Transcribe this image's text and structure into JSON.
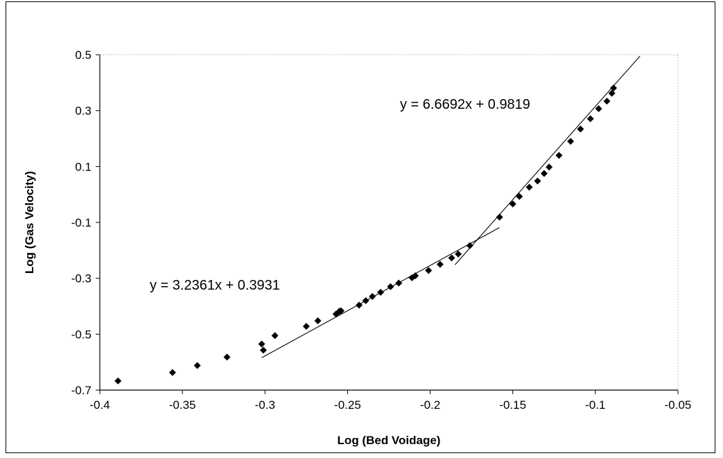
{
  "chart_data": {
    "type": "scatter",
    "title": "",
    "xlabel": "Log (Bed Voidage)",
    "ylabel": "Log (Gas Velocity)",
    "xlim": [
      -0.4,
      -0.05
    ],
    "ylim": [
      -0.7,
      0.5
    ],
    "x_ticks": [
      "-0.4",
      "-0.35",
      "-0.3",
      "-0.25",
      "-0.2",
      "-0.15",
      "-0.1",
      "-0.05"
    ],
    "y_ticks": [
      "0.5",
      "0.3",
      "0.1",
      "-0.1",
      "-0.3",
      "-0.5",
      "-0.7"
    ],
    "grid": false,
    "legend": "none",
    "marker": "diamond",
    "marker_color": "#000000",
    "series": [
      {
        "points": [
          [
            -0.389,
            -0.667
          ],
          [
            -0.356,
            -0.637
          ],
          [
            -0.341,
            -0.612
          ],
          [
            -0.323,
            -0.582
          ],
          [
            -0.302,
            -0.535
          ],
          [
            -0.301,
            -0.557
          ],
          [
            -0.294,
            -0.505
          ],
          [
            -0.275,
            -0.472
          ],
          [
            -0.268,
            -0.452
          ],
          [
            -0.257,
            -0.428
          ],
          [
            -0.255,
            -0.418
          ],
          [
            -0.254,
            -0.416
          ],
          [
            -0.243,
            -0.396
          ],
          [
            -0.239,
            -0.38
          ],
          [
            -0.235,
            -0.365
          ],
          [
            -0.23,
            -0.35
          ],
          [
            -0.224,
            -0.33
          ],
          [
            -0.219,
            -0.317
          ],
          [
            -0.211,
            -0.298
          ],
          [
            -0.209,
            -0.291
          ],
          [
            -0.201,
            -0.272
          ],
          [
            -0.194,
            -0.25
          ],
          [
            -0.187,
            -0.227
          ],
          [
            -0.183,
            -0.213
          ],
          [
            -0.176,
            -0.183
          ],
          [
            -0.158,
            -0.081
          ],
          [
            -0.15,
            -0.034
          ],
          [
            -0.146,
            -0.007
          ],
          [
            -0.14,
            0.026
          ],
          [
            -0.135,
            0.048
          ],
          [
            -0.131,
            0.075
          ],
          [
            -0.128,
            0.098
          ],
          [
            -0.122,
            0.14
          ],
          [
            -0.115,
            0.19
          ],
          [
            -0.109,
            0.234
          ],
          [
            -0.103,
            0.271
          ],
          [
            -0.098,
            0.307
          ],
          [
            -0.093,
            0.334
          ],
          [
            -0.09,
            0.362
          ],
          [
            -0.089,
            0.381
          ]
        ]
      }
    ],
    "trendlines": [
      {
        "equation": "y = 3.2361x + 0.3931",
        "slope": 3.2361,
        "intercept": 0.3931,
        "x_range": [
          -0.302,
          -0.158
        ]
      },
      {
        "equation": "y = 6.6692x + 0.9819",
        "slope": 6.6692,
        "intercept": 0.9819,
        "x_range": [
          -0.185,
          -0.073
        ]
      }
    ]
  }
}
